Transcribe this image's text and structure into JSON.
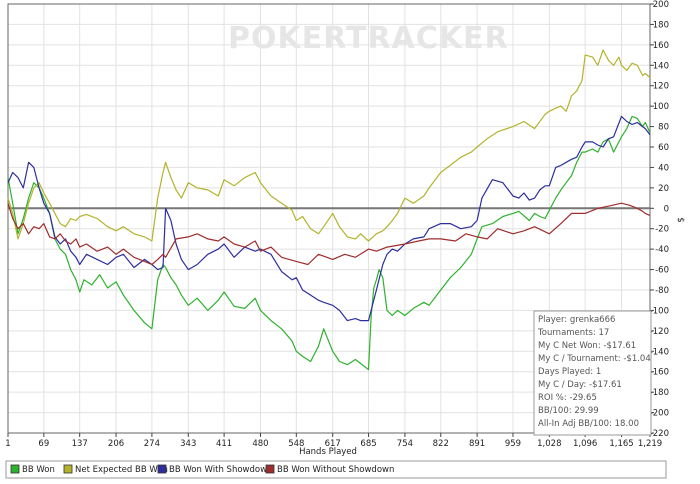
{
  "chart_data": {
    "type": "line",
    "watermark": "POKERTRACKER",
    "xlabel": "Hands Played",
    "ylabel": "$",
    "xlim": [
      1,
      1219
    ],
    "ylim": [
      -220,
      200
    ],
    "x_ticks": [
      1,
      69,
      137,
      206,
      274,
      343,
      411,
      480,
      548,
      617,
      685,
      754,
      822,
      891,
      959,
      1028,
      1096,
      1165,
      1219
    ],
    "x_tick_labels": [
      "1",
      "69",
      "137",
      "206",
      "274",
      "343",
      "411",
      "480",
      "548",
      "617",
      "685",
      "754",
      "822",
      "891",
      "959",
      "1,028",
      "1,096",
      "1,165",
      "1,219"
    ],
    "y_ticks": [
      200,
      180,
      160,
      140,
      120,
      100,
      80,
      60,
      40,
      20,
      0,
      -20,
      -40,
      -60,
      -80,
      -100,
      -120,
      -140,
      -160,
      -180,
      -200,
      -220
    ],
    "grid": true,
    "zero_line": true,
    "legend_position": "bottom",
    "series": [
      {
        "name": "BB Won",
        "color": "#2db22d",
        "x": [
          1,
          10,
          20,
          30,
          40,
          50,
          60,
          69,
          80,
          90,
          100,
          110,
          120,
          130,
          137,
          145,
          160,
          175,
          190,
          206,
          220,
          240,
          260,
          274,
          285,
          295,
          300,
          310,
          320,
          330,
          343,
          360,
          380,
          400,
          411,
          430,
          450,
          470,
          480,
          500,
          520,
          540,
          548,
          560,
          575,
          590,
          600,
          617,
          630,
          645,
          660,
          670,
          685,
          690,
          695,
          700,
          705,
          712,
          720,
          730,
          740,
          754,
          770,
          790,
          800,
          822,
          840,
          860,
          880,
          891,
          900,
          920,
          940,
          959,
          970,
          990,
          1000,
          1010,
          1020,
          1028,
          1040,
          1050,
          1060,
          1070,
          1080,
          1090,
          1096,
          1110,
          1120,
          1130,
          1140,
          1150,
          1165,
          1175,
          1185,
          1195,
          1205,
          1210,
          1219
        ],
        "values": [
          30,
          5,
          -25,
          -10,
          10,
          25,
          20,
          10,
          -5,
          -30,
          -40,
          -45,
          -60,
          -70,
          -82,
          -70,
          -75,
          -65,
          -78,
          -72,
          -85,
          -100,
          -112,
          -118,
          -70,
          -55,
          -58,
          -68,
          -75,
          -85,
          -95,
          -88,
          -100,
          -90,
          -82,
          -96,
          -98,
          -88,
          -100,
          -110,
          -118,
          -130,
          -140,
          -145,
          -150,
          -135,
          -118,
          -140,
          -150,
          -153,
          -148,
          -152,
          -158,
          -105,
          -78,
          -70,
          -60,
          -68,
          -100,
          -105,
          -100,
          -105,
          -98,
          -92,
          -95,
          -80,
          -68,
          -58,
          -45,
          -30,
          -18,
          -15,
          -8,
          -5,
          -3,
          -12,
          -5,
          -8,
          -10,
          -2,
          10,
          18,
          25,
          32,
          45,
          55,
          55,
          58,
          55,
          65,
          68,
          55,
          70,
          78,
          90,
          88,
          80,
          84,
          74
        ]
      },
      {
        "name": "Net Expected BB Won",
        "color": "#b3b32d",
        "x": [
          1,
          10,
          20,
          30,
          40,
          50,
          60,
          69,
          80,
          90,
          100,
          110,
          120,
          130,
          137,
          150,
          170,
          190,
          206,
          220,
          240,
          260,
          274,
          285,
          295,
          300,
          310,
          320,
          330,
          343,
          360,
          380,
          400,
          411,
          430,
          450,
          470,
          480,
          500,
          520,
          540,
          548,
          560,
          575,
          590,
          600,
          617,
          630,
          645,
          660,
          670,
          685,
          700,
          712,
          720,
          730,
          740,
          754,
          770,
          790,
          800,
          822,
          840,
          860,
          880,
          891,
          910,
          930,
          959,
          980,
          1000,
          1020,
          1028,
          1040,
          1050,
          1060,
          1070,
          1080,
          1090,
          1096,
          1110,
          1120,
          1130,
          1140,
          1150,
          1160,
          1165,
          1175,
          1185,
          1195,
          1205,
          1210,
          1219
        ],
        "values": [
          10,
          -5,
          -30,
          -15,
          5,
          20,
          25,
          15,
          5,
          -5,
          -15,
          -18,
          -10,
          -12,
          -8,
          -6,
          -10,
          -18,
          -22,
          -18,
          -25,
          -28,
          -32,
          10,
          35,
          45,
          30,
          18,
          10,
          25,
          20,
          18,
          12,
          28,
          22,
          30,
          35,
          25,
          12,
          5,
          -2,
          -12,
          -8,
          -20,
          -25,
          -18,
          -5,
          -18,
          -28,
          -30,
          -25,
          -32,
          -25,
          -22,
          -18,
          -12,
          -5,
          10,
          5,
          12,
          20,
          35,
          42,
          50,
          55,
          60,
          68,
          75,
          80,
          85,
          78,
          92,
          95,
          98,
          100,
          95,
          110,
          115,
          125,
          150,
          148,
          140,
          155,
          145,
          140,
          148,
          140,
          135,
          142,
          140,
          130,
          132,
          128
        ]
      },
      {
        "name": "BB Won With Showdown",
        "color": "#2d2d9e",
        "x": [
          1,
          10,
          20,
          30,
          40,
          50,
          60,
          69,
          80,
          90,
          100,
          110,
          120,
          130,
          137,
          150,
          170,
          190,
          206,
          220,
          240,
          260,
          274,
          285,
          295,
          300,
          310,
          320,
          330,
          343,
          360,
          380,
          400,
          411,
          430,
          450,
          470,
          480,
          500,
          520,
          540,
          548,
          560,
          575,
          590,
          600,
          617,
          630,
          645,
          660,
          670,
          685,
          700,
          712,
          720,
          730,
          740,
          754,
          770,
          790,
          800,
          822,
          840,
          860,
          880,
          891,
          900,
          920,
          940,
          959,
          970,
          980,
          990,
          1000,
          1010,
          1020,
          1028,
          1040,
          1050,
          1060,
          1070,
          1080,
          1090,
          1096,
          1110,
          1120,
          1130,
          1140,
          1150,
          1165,
          1175,
          1185,
          1195,
          1205,
          1210,
          1219
        ],
        "values": [
          25,
          35,
          30,
          20,
          45,
          40,
          20,
          5,
          -5,
          -28,
          -35,
          -30,
          -42,
          -48,
          -55,
          -45,
          -50,
          -55,
          -48,
          -45,
          -58,
          -50,
          -55,
          -60,
          -58,
          0,
          -12,
          -35,
          -50,
          -60,
          -55,
          -45,
          -40,
          -35,
          -48,
          -38,
          -42,
          -40,
          -45,
          -62,
          -70,
          -68,
          -80,
          -85,
          -90,
          -92,
          -95,
          -100,
          -110,
          -108,
          -110,
          -110,
          -80,
          -55,
          -45,
          -40,
          -42,
          -35,
          -30,
          -28,
          -20,
          -15,
          -15,
          -20,
          -18,
          -12,
          10,
          28,
          25,
          12,
          10,
          15,
          8,
          10,
          18,
          22,
          22,
          40,
          42,
          45,
          48,
          50,
          60,
          65,
          65,
          62,
          60,
          68,
          70,
          90,
          85,
          82,
          84,
          80,
          78,
          72
        ]
      },
      {
        "name": "BB Won Without Showdown",
        "color": "#9e2d2d",
        "x": [
          1,
          10,
          20,
          30,
          40,
          50,
          60,
          69,
          80,
          90,
          100,
          110,
          120,
          130,
          137,
          150,
          170,
          190,
          206,
          220,
          240,
          260,
          274,
          285,
          295,
          300,
          320,
          343,
          360,
          380,
          400,
          411,
          430,
          450,
          470,
          480,
          500,
          520,
          548,
          570,
          590,
          617,
          640,
          660,
          685,
          700,
          720,
          754,
          780,
          800,
          822,
          850,
          870,
          891,
          910,
          930,
          959,
          980,
          1000,
          1028,
          1050,
          1070,
          1096,
          1120,
          1140,
          1165,
          1180,
          1195,
          1205,
          1210,
          1219
        ],
        "values": [
          5,
          -10,
          -20,
          -15,
          -25,
          -18,
          -20,
          -15,
          -28,
          -30,
          -25,
          -32,
          -35,
          -30,
          -38,
          -35,
          -42,
          -38,
          -45,
          -40,
          -48,
          -52,
          -55,
          -50,
          -45,
          -48,
          -30,
          -28,
          -25,
          -30,
          -32,
          -28,
          -35,
          -38,
          -32,
          -42,
          -38,
          -48,
          -52,
          -55,
          -45,
          -50,
          -45,
          -48,
          -40,
          -42,
          -38,
          -35,
          -32,
          -30,
          -30,
          -32,
          -25,
          -28,
          -30,
          -20,
          -25,
          -22,
          -18,
          -25,
          -15,
          -5,
          -5,
          0,
          2,
          5,
          3,
          0,
          -3,
          -5,
          -7
        ]
      }
    ]
  },
  "stats": {
    "player": "Player: grenka666",
    "tournaments": "Tournaments: 17",
    "net_won": "My C Net Won: -$17.61",
    "per_tournament": "My C / Tournament: -$1.04",
    "days_played": "Days Played: 1",
    "per_day": "My C / Day: -$17.61",
    "roi": "ROI %: -29.65",
    "bb100": "BB/100: 29.99",
    "allin_bb100": "All-In Adj BB/100: 18.00"
  }
}
